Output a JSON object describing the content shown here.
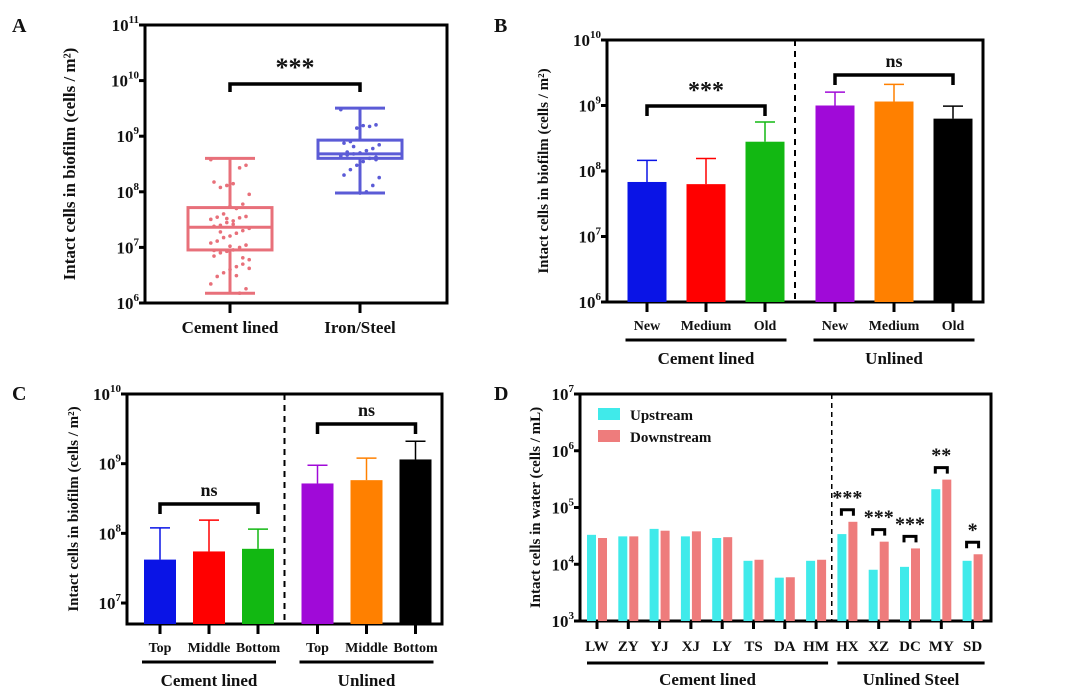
{
  "chart_data": [
    {
      "panel": "A",
      "type": "box",
      "ylabel": "Intact cells in biofilm (cells / m²)",
      "yscale": "log",
      "ylim": [
        1000000.0,
        100000000000.0
      ],
      "yticks": [
        6,
        7,
        8,
        9,
        10,
        11
      ],
      "categories": [
        "Cement lined",
        "Iron/Steel"
      ],
      "colors": [
        "#e8707a",
        "#5b5bd6"
      ],
      "boxes": [
        {
          "name": "Cement lined",
          "min": 1500000.0,
          "q1": 9000000.0,
          "median": 23000000.0,
          "q3": 52000000.0,
          "max": 400000000.0
        },
        {
          "name": "Iron/Steel",
          "min": 95000000.0,
          "q1": 400000000.0,
          "median": 480000000.0,
          "q3": 850000000.0,
          "max": 3200000000.0
        }
      ],
      "points": [
        [
          380000000.0,
          300000000.0,
          270000000.0,
          140000000.0,
          130000000.0,
          120000000.0,
          150000000.0,
          90000000.0,
          60000000.0,
          50000000.0,
          55000000.0,
          40000000.0,
          35000000.0,
          32000000.0,
          36000000.0,
          34000000.0,
          30000000.0,
          28000000.0,
          25000000.0,
          24000000.0,
          22000000.0,
          20000000.0,
          18000000.0,
          16000000.0,
          15000000.0,
          13000000.0,
          12000000.0,
          11000000.0,
          10000000.0,
          9000000.0,
          8500000.0,
          8000000.0,
          7000000.0,
          6000000.0,
          5000000.0,
          4500000.0,
          4000000.0,
          3500000.0,
          3000000.0,
          2200000.0,
          1800000.0,
          1500000.0,
          26000000.0,
          33000000.0,
          19000000.0,
          8800000.0,
          4200000.0,
          6500000.0,
          3100000.0,
          10500000.0
        ],
        [
          3000000000.0,
          1600000000.0,
          1500000000.0,
          1550000000.0,
          1400000000.0,
          800000000.0,
          750000000.0,
          700000000.0,
          600000000.0,
          550000000.0,
          500000000.0,
          480000000.0,
          460000000.0,
          450000000.0,
          420000000.0,
          400000000.0,
          350000000.0,
          300000000.0,
          250000000.0,
          200000000.0,
          180000000.0,
          130000000.0,
          100000000.0,
          95000000.0,
          650000000.0,
          520000000.0,
          440000000.0,
          380000000.0
        ]
      ],
      "significance": {
        "label": "***",
        "between": [
          0,
          1
        ]
      }
    },
    {
      "panel": "B",
      "type": "bar",
      "ylabel": "Intact cells in biofilm (cells / m²)",
      "yscale": "log",
      "ylim": [
        1000000.0,
        10000000000.0
      ],
      "yticks": [
        6,
        7,
        8,
        9,
        10
      ],
      "categories": [
        "New",
        "Medium",
        "Old",
        "New",
        "Medium",
        "Old"
      ],
      "groups": [
        {
          "label": "Cement lined",
          "range": [
            0,
            2
          ]
        },
        {
          "label": "Unlined",
          "range": [
            3,
            5
          ]
        }
      ],
      "values": [
        68000000.0,
        63000000.0,
        280000000.0,
        1000000000.0,
        1150000000.0,
        630000000.0
      ],
      "errors_upper": [
        145000000.0,
        155000000.0,
        560000000.0,
        1600000000.0,
        2100000000.0,
        980000000.0
      ],
      "colors": [
        "#0a14e6",
        "#ff0000",
        "#12b812",
        "#a00ad8",
        "#ff8000",
        "#000000"
      ],
      "significance": [
        {
          "label": "***",
          "between": [
            0,
            2
          ]
        },
        {
          "label": "ns",
          "between": [
            3,
            5
          ]
        }
      ]
    },
    {
      "panel": "C",
      "type": "bar",
      "ylabel": "Intact cells in biofilm (cells / m²)",
      "yscale": "log",
      "ylim": [
        5000000.0,
        10000000000.0
      ],
      "yticks": [
        7,
        8,
        9,
        10
      ],
      "categories": [
        "Top",
        "Middle",
        "Bottom",
        "Top",
        "Middle",
        "Bottom"
      ],
      "groups": [
        {
          "label": "Cement lined",
          "range": [
            0,
            2
          ]
        },
        {
          "label": "Unlined",
          "range": [
            3,
            5
          ]
        }
      ],
      "values": [
        42000000.0,
        55000000.0,
        60000000.0,
        520000000.0,
        580000000.0,
        1150000000.0
      ],
      "errors_upper": [
        120000000.0,
        155000000.0,
        115000000.0,
        950000000.0,
        1200000000.0,
        2100000000.0
      ],
      "colors": [
        "#0a14e6",
        "#ff0000",
        "#12b812",
        "#a00ad8",
        "#ff8000",
        "#000000"
      ],
      "significance": [
        {
          "label": "ns",
          "between": [
            0,
            2
          ]
        },
        {
          "label": "ns",
          "between": [
            3,
            5
          ]
        }
      ]
    },
    {
      "panel": "D",
      "type": "bar",
      "ylabel": "Intact cells in water (cells / mL)",
      "yscale": "log",
      "ylim": [
        1000.0,
        10000000.0
      ],
      "yticks": [
        3,
        4,
        5,
        6,
        7
      ],
      "categories": [
        "LW",
        "ZY",
        "YJ",
        "XJ",
        "LY",
        "TS",
        "DA",
        "HM",
        "HX",
        "XZ",
        "DC",
        "MY",
        "SD"
      ],
      "groups": [
        {
          "label": "Cement lined",
          "range": [
            0,
            7
          ]
        },
        {
          "label": "Unlined Steel",
          "range": [
            8,
            12
          ]
        }
      ],
      "legend": "top-left",
      "series": [
        {
          "name": "Upstream",
          "color": "#40eaea",
          "values": [
            33000.0,
            31000.0,
            42000.0,
            31000.0,
            29000.0,
            11500.0,
            5800.0,
            11500.0,
            34000.0,
            8000.0,
            9000.0,
            210000.0,
            11500.0
          ]
        },
        {
          "name": "Downstream",
          "color": "#ee7c7c",
          "values": [
            29000.0,
            31000.0,
            39000.0,
            38000.0,
            30000.0,
            12000.0,
            5900.0,
            12000.0,
            56000.0,
            25000.0,
            19000.0,
            310000.0,
            15000.0
          ]
        }
      ],
      "significance": [
        {
          "label": "***",
          "category": "HX"
        },
        {
          "label": "***",
          "category": "XZ"
        },
        {
          "label": "***",
          "category": "DC"
        },
        {
          "label": "**",
          "category": "MY"
        },
        {
          "label": "*",
          "category": "SD"
        }
      ]
    }
  ]
}
